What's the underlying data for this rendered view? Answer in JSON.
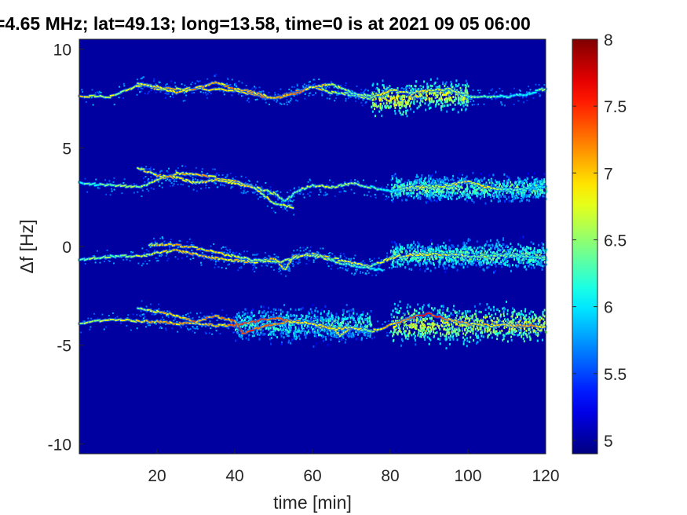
{
  "chart_data": {
    "type": "heatmap",
    "title": "=4.65 MHz;  lat=49.13; long=13.58, time=0 is at 2021 09 05 06:00",
    "xlabel": "time [min]",
    "ylabel": "Δf [Hz]",
    "xlim": [
      0,
      120
    ],
    "ylim": [
      -10.5,
      10.5
    ],
    "x_ticks": [
      20,
      40,
      60,
      80,
      100,
      120
    ],
    "y_ticks": [
      -10,
      -5,
      0,
      5,
      10
    ],
    "colorbar": {
      "range": [
        4.9,
        8
      ],
      "ticks": [
        5,
        5.5,
        6,
        6.5,
        7,
        7.5,
        8
      ],
      "colormap": "jet"
    },
    "background_value": 5.0,
    "series": [
      {
        "x": [
          0,
          8,
          16,
          20,
          30,
          40,
          50,
          55,
          60,
          65,
          70,
          75,
          80,
          85,
          90,
          95,
          100,
          105,
          110,
          115,
          120
        ],
        "values": [
          7.6,
          7.6,
          8.2,
          8.0,
          8.0,
          7.9,
          7.5,
          7.8,
          8.1,
          7.8,
          7.7,
          7.5,
          7.9,
          7.8,
          7.9,
          8.0,
          7.6,
          7.6,
          7.6,
          7.7,
          8.0
        ],
        "intensity": [
          6.8,
          6.6,
          6.8,
          6.9,
          6.8,
          6.8,
          7.4,
          7.3,
          6.9,
          6.5,
          6.4,
          6.5,
          6.9,
          6.6,
          6.8,
          6.6,
          6.3,
          6.2,
          6.2,
          6.1,
          6.5
        ]
      },
      {
        "x": [
          15,
          20,
          25,
          30,
          35,
          40,
          45,
          50,
          55,
          60,
          65,
          70,
          75
        ],
        "values": [
          8.3,
          8.1,
          7.8,
          8.0,
          8.3,
          8.0,
          7.8,
          7.5,
          7.7,
          8.1,
          8.2,
          7.8,
          7.6
        ],
        "intensity": [
          6.7,
          6.9,
          6.8,
          7.1,
          6.9,
          7.1,
          6.9,
          7.0,
          7.2,
          7.0,
          6.7,
          6.5,
          6.3
        ]
      },
      {
        "x": [
          0,
          8,
          16,
          20,
          25,
          30,
          40,
          45,
          50,
          53,
          56,
          60,
          65,
          70,
          75,
          80,
          85,
          90,
          95,
          100,
          105,
          110,
          115,
          120
        ],
        "values": [
          3.2,
          3.1,
          3.0,
          3.4,
          3.7,
          3.7,
          3.3,
          3.0,
          2.7,
          2.3,
          2.8,
          3.1,
          3.0,
          3.2,
          3.0,
          2.8,
          3.0,
          3.0,
          3.1,
          3.3,
          3.0,
          2.9,
          2.9,
          3.0
        ],
        "intensity": [
          6.2,
          6.3,
          6.5,
          6.7,
          6.9,
          7.0,
          6.9,
          6.7,
          6.6,
          6.4,
          6.5,
          6.6,
          6.6,
          6.6,
          6.3,
          6.2,
          6.5,
          6.6,
          6.7,
          6.9,
          6.6,
          6.3,
          6.1,
          6.2
        ]
      },
      {
        "x": [
          15,
          20,
          25,
          30,
          35,
          40,
          45,
          50,
          55
        ],
        "values": [
          4.0,
          3.6,
          3.5,
          3.2,
          3.4,
          3.2,
          3.0,
          2.2,
          2.0
        ],
        "intensity": [
          6.7,
          6.9,
          6.9,
          6.8,
          6.9,
          6.9,
          6.7,
          6.6,
          6.5
        ]
      },
      {
        "x": [
          0,
          8,
          16,
          20,
          25,
          30,
          35,
          40,
          45,
          50,
          53,
          55,
          60,
          65,
          70,
          75,
          80,
          85,
          90,
          95,
          100,
          105,
          110,
          115,
          120
        ],
        "values": [
          -0.7,
          -0.5,
          -0.5,
          -0.3,
          -0.2,
          -0.4,
          -0.6,
          -0.7,
          -0.8,
          -0.6,
          -1.2,
          -0.5,
          -0.4,
          -0.6,
          -0.8,
          -1.0,
          -0.6,
          -0.4,
          -0.4,
          -0.4,
          -0.5,
          -0.5,
          -0.4,
          -0.5,
          -0.6
        ],
        "intensity": [
          6.5,
          6.4,
          6.6,
          6.8,
          7.0,
          7.0,
          6.9,
          6.9,
          6.8,
          7.0,
          6.8,
          7.0,
          7.0,
          6.8,
          6.7,
          6.5,
          6.7,
          6.7,
          6.9,
          6.6,
          6.5,
          6.5,
          6.4,
          6.3,
          6.4
        ]
      },
      {
        "x": [
          18,
          22,
          28,
          35,
          40,
          45,
          52,
          58,
          62,
          68,
          72,
          78
        ],
        "values": [
          0.1,
          0.1,
          0.0,
          -0.3,
          -0.5,
          -0.7,
          -0.8,
          -0.4,
          -0.5,
          -0.9,
          -1.0,
          -1.2
        ],
        "intensity": [
          6.8,
          7.0,
          6.9,
          6.8,
          6.7,
          6.6,
          6.6,
          6.6,
          6.5,
          6.4,
          6.3,
          6.2
        ]
      },
      {
        "x": [
          0,
          8,
          16,
          20,
          25,
          30,
          35,
          40,
          45,
          50,
          55,
          60,
          62,
          65,
          67,
          70,
          75,
          80,
          85,
          90,
          95,
          100,
          105,
          110,
          115,
          120
        ],
        "values": [
          -3.9,
          -3.7,
          -3.8,
          -3.8,
          -3.9,
          -3.9,
          -4.0,
          -4.0,
          -3.8,
          -3.6,
          -3.8,
          -3.9,
          -4.1,
          -4.1,
          -4.5,
          -4.1,
          -4.3,
          -4.0,
          -3.6,
          -3.4,
          -3.7,
          -3.9,
          -4.0,
          -4.0,
          -4.0,
          -4.1
        ],
        "intensity": [
          6.6,
          6.7,
          6.8,
          7.0,
          7.0,
          6.9,
          7.0,
          7.2,
          7.3,
          7.3,
          7.1,
          7.2,
          7.1,
          6.9,
          6.8,
          7.0,
          6.8,
          7.0,
          7.4,
          7.5,
          7.2,
          6.9,
          6.8,
          6.9,
          7.0,
          7.1
        ]
      },
      {
        "x": [
          15,
          20,
          25,
          30,
          35,
          40,
          42,
          48,
          54,
          60,
          65,
          70,
          75
        ],
        "values": [
          -3.1,
          -3.3,
          -3.5,
          -3.8,
          -3.5,
          -3.8,
          -4.4,
          -4.0,
          -3.8,
          -3.9,
          -4.2,
          -4.1,
          -4.3
        ],
        "intensity": [
          6.6,
          6.8,
          7.0,
          7.2,
          7.1,
          7.3,
          7.6,
          7.2,
          7.0,
          6.9,
          6.8,
          6.7,
          6.6
        ]
      }
    ],
    "diffuse_regions": [
      {
        "x": [
          75,
          85
        ],
        "center": 7.5,
        "spread": 1.1,
        "intensity": 6.8
      },
      {
        "x": [
          85,
          100
        ],
        "center": 7.7,
        "spread": 1.0,
        "intensity": 6.7
      },
      {
        "x": [
          80,
          120
        ],
        "center": 3.0,
        "spread": 0.9,
        "intensity": 6.4
      },
      {
        "x": [
          80,
          120
        ],
        "center": -0.4,
        "spread": 1.0,
        "intensity": 6.4
      },
      {
        "x": [
          40,
          75
        ],
        "center": -3.9,
        "spread": 1.2,
        "intensity": 6.3
      },
      {
        "x": [
          80,
          120
        ],
        "center": -3.9,
        "spread": 1.3,
        "intensity": 6.7
      }
    ]
  }
}
